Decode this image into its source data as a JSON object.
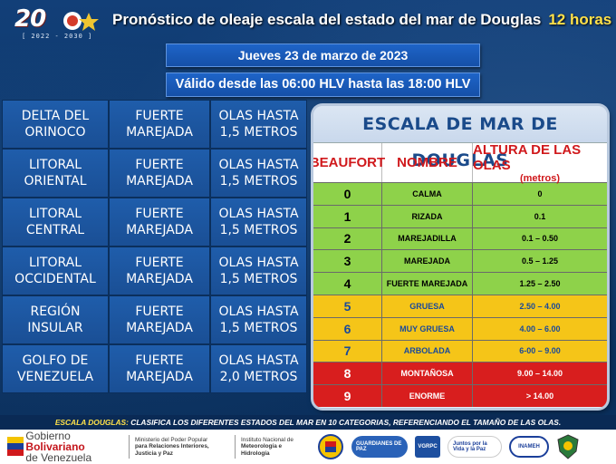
{
  "logo": {
    "digits": "20",
    "years": "[ 2022 - 2030 ]"
  },
  "title": {
    "main": "Pronóstico de oleaje escala del estado del mar de Douglas",
    "accent": "12 horas"
  },
  "date_line": "Jueves 23 de marzo de 2023",
  "valid_line": "Válido desde las 06:00 HLV hasta las 18:00 HLV",
  "regions": [
    {
      "name": [
        "DELTA DEL",
        "ORINOCO"
      ],
      "state": [
        "FUERTE",
        "MAREJADA"
      ],
      "waves": [
        "OLAS HASTA",
        "1,5 METROS"
      ]
    },
    {
      "name": [
        "LITORAL",
        "ORIENTAL"
      ],
      "state": [
        "FUERTE",
        "MAREJADA"
      ],
      "waves": [
        "OLAS HASTA",
        "1,5 METROS"
      ]
    },
    {
      "name": [
        "LITORAL",
        "CENTRAL"
      ],
      "state": [
        "FUERTE",
        "MAREJADA"
      ],
      "waves": [
        "OLAS HASTA",
        "1,5 METROS"
      ]
    },
    {
      "name": [
        "LITORAL",
        "OCCIDENTAL"
      ],
      "state": [
        "FUERTE",
        "MAREJADA"
      ],
      "waves": [
        "OLAS HASTA",
        "1,5 METROS"
      ]
    },
    {
      "name": [
        "REGIÓN",
        "INSULAR"
      ],
      "state": [
        "FUERTE",
        "MAREJADA"
      ],
      "waves": [
        "OLAS HASTA",
        "1,5 METROS"
      ]
    },
    {
      "name": [
        "GOLFO DE",
        "VENEZUELA"
      ],
      "state": [
        "FUERTE",
        "MAREJADA"
      ],
      "waves": [
        "OLAS HASTA",
        "2,0 METROS"
      ]
    }
  ],
  "scale": {
    "title": "ESCALA DE MAR DE DOUGLAS",
    "headers": {
      "beaufort": "BEAUFORT",
      "nombre": "NOMBRE",
      "altura": "ALTURA DE LAS OLAS",
      "unit": "(metros)"
    },
    "rows": [
      {
        "num": "0",
        "name": "CALMA",
        "height": "0",
        "color": "#8ed24a",
        "text": "#000000"
      },
      {
        "num": "1",
        "name": "RIZADA",
        "height": "0.1",
        "color": "#8ed24a",
        "text": "#000000"
      },
      {
        "num": "2",
        "name": "MAREJADILLA",
        "height": "0.1 – 0.50",
        "color": "#8ed24a",
        "text": "#000000"
      },
      {
        "num": "3",
        "name": "MAREJADA",
        "height": "0.5 – 1.25",
        "color": "#8ed24a",
        "text": "#000000"
      },
      {
        "num": "4",
        "name": "FUERTE MAREJADA",
        "height": "1.25 – 2.50",
        "color": "#8ed24a",
        "text": "#000000"
      },
      {
        "num": "5",
        "name": "GRUESA",
        "height": "2.50 – 4.00",
        "color": "#f5c518",
        "text": "#1a4a9a"
      },
      {
        "num": "6",
        "name": "MUY GRUESA",
        "height": "4.00 – 6.00",
        "color": "#f5c518",
        "text": "#1a4a9a"
      },
      {
        "num": "7",
        "name": "ARBOLADA",
        "height": "6-00 – 9.00",
        "color": "#f5c518",
        "text": "#1a4a9a"
      },
      {
        "num": "8",
        "name": "MONTAÑOSA",
        "height": "9.00 – 14.00",
        "color": "#d81e1e",
        "text": "#ffffff"
      },
      {
        "num": "9",
        "name": "ENORME",
        "height": "> 14.00",
        "color": "#d81e1e",
        "text": "#ffffff"
      }
    ]
  },
  "note": {
    "label": "ESCALA DOUGLAS:",
    "text": "CLASIFICA LOS DIFERENTES ESTADOS DEL MAR EN 10 CATEGORIAS, REFERENCIANDO EL TAMAÑO DE LAS OLAS."
  },
  "footer": {
    "gob_line1_a": "Gobierno ",
    "gob_line1_b": "Bolivariano",
    "gob_line2": "de Venezuela",
    "ministry": [
      "Ministerio del Poder Popular",
      "para Relaciones Interiores, Justicia y Paz"
    ],
    "institute": [
      "Instituto Nacional de",
      "Meteorología e Hidrología"
    ],
    "badges": [
      "GUARDIANES DE PAZ",
      "VGRPC",
      "Juntos por la Vida y la Paz",
      "INAMEH"
    ]
  }
}
